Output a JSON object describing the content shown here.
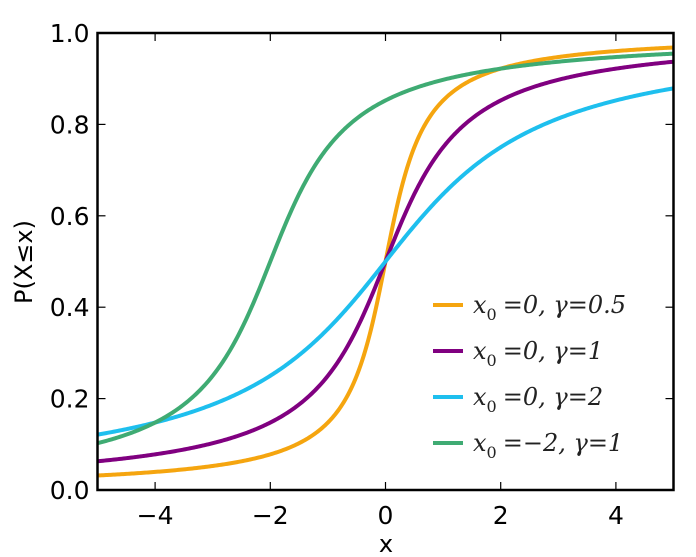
{
  "chart_data": {
    "type": "line",
    "title": "",
    "xlabel": "x",
    "ylabel": "P(X≤x)",
    "xlim": [
      -5,
      5
    ],
    "ylim": [
      0.0,
      1.0
    ],
    "xticks": [
      -4,
      -2,
      0,
      2,
      4
    ],
    "xtick_labels": [
      "−4",
      "−2",
      "0",
      "2",
      "4"
    ],
    "yticks": [
      0.0,
      0.2,
      0.4,
      0.6,
      0.8,
      1.0
    ],
    "ytick_labels": [
      "0.0",
      "0.2",
      "0.4",
      "0.6",
      "0.8",
      "1.0"
    ],
    "grid": false,
    "legend_position": "lower right",
    "x": [
      -5,
      -4,
      -3,
      -2,
      -1,
      -0.5,
      0,
      0.5,
      1,
      2,
      3,
      4,
      5
    ],
    "series": [
      {
        "name": "x0=0, γ=0.5",
        "legend": "x₀ =0, γ=0.5",
        "color": "#f5a50f",
        "x0": 0,
        "gamma": 0.5,
        "values": [
          0.032,
          0.04,
          0.053,
          0.078,
          0.148,
          0.25,
          0.5,
          0.75,
          0.852,
          0.922,
          0.947,
          0.96,
          0.968
        ]
      },
      {
        "name": "x0=0, γ=1",
        "legend": "x₀ =0, γ=1",
        "color": "#800080",
        "x0": 0,
        "gamma": 1,
        "values": [
          0.063,
          0.078,
          0.102,
          0.148,
          0.25,
          0.352,
          0.5,
          0.648,
          0.75,
          0.852,
          0.898,
          0.922,
          0.937
        ]
      },
      {
        "name": "x0=0, γ=2",
        "legend": "x₀ =0, γ=2",
        "color": "#1ebfee",
        "x0": 0,
        "gamma": 2,
        "values": [
          0.121,
          0.148,
          0.187,
          0.25,
          0.352,
          0.422,
          0.5,
          0.578,
          0.648,
          0.75,
          0.813,
          0.852,
          0.879
        ]
      },
      {
        "name": "x0=-2, γ=1",
        "legend": "x₀ =−2, γ=1",
        "color": "#3fab73",
        "x0": -2,
        "gamma": 1,
        "values": [
          0.102,
          0.148,
          0.25,
          0.5,
          0.75,
          0.813,
          0.852,
          0.878,
          0.898,
          0.922,
          0.937,
          0.947,
          0.955
        ]
      }
    ]
  },
  "legend": {
    "items": [
      {
        "label_x": "x",
        "label_sub": "0",
        "label_rest": "=0,  γ=0.5",
        "color": "#f5a50f"
      },
      {
        "label_x": "x",
        "label_sub": "0",
        "label_rest": "=0,  γ=1",
        "color": "#800080"
      },
      {
        "label_x": "x",
        "label_sub": "0",
        "label_rest": "=0,  γ=2",
        "color": "#1ebfee"
      },
      {
        "label_x": "x",
        "label_sub": "0",
        "label_rest": "=−2,  γ=1",
        "color": "#3fab73"
      }
    ]
  }
}
